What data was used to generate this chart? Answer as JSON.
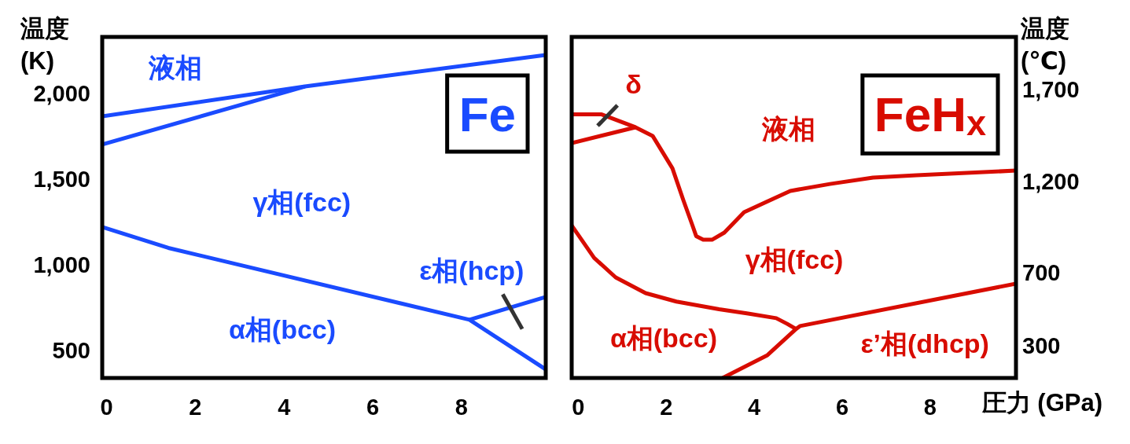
{
  "chart_data": [
    {
      "type": "line",
      "title": "Fe",
      "ylabel": "温度\n(K)",
      "xlim": [
        -0.1,
        9.9
      ],
      "xticks": [
        0,
        2,
        4,
        6,
        8
      ],
      "ylim": [
        340,
        2330
      ],
      "yticks": [
        {
          "value": 500,
          "label": "500"
        },
        {
          "value": 1000,
          "label": "1,000"
        },
        {
          "value": 1500,
          "label": "1,500"
        },
        {
          "value": 2000,
          "label": "2,000"
        }
      ],
      "annotations": [
        "液相",
        "γ相(fcc)",
        "ε相(hcp)",
        "α相(bcc)"
      ],
      "series": [
        {
          "color": "#1a4bff",
          "x": [
            -0.1,
            4.47,
            9.9
          ],
          "values": [
            1867,
            2041,
            2225
          ]
        },
        {
          "color": "#1a4bff",
          "x": [
            -0.1,
            4.47
          ],
          "values": [
            1702,
            2041
          ]
        },
        {
          "color": "#1a4bff",
          "x": [
            -0.1,
            1.39,
            8.18,
            9.9
          ],
          "values": [
            1221,
            1099,
            680,
            390
          ]
        },
        {
          "color": "#1a4bff",
          "x": [
            8.18,
            9.9
          ],
          "values": [
            680,
            813
          ]
        },
        {
          "color": "#333333",
          "x": [
            8.93,
            9.37
          ],
          "values": [
            828,
            626
          ]
        }
      ]
    },
    {
      "type": "line",
      "title": "FeH$_{x}$",
      "xlabel": "圧力 (GPa)",
      "y2label": "温度\n(℃)",
      "xlim": [
        -0.15,
        9.95
      ],
      "xticks": [
        0,
        2,
        4,
        6,
        8
      ],
      "y2lim": [
        125,
        1990
      ],
      "y2ticks": [
        {
          "value": 300,
          "label": "300"
        },
        {
          "value": 700,
          "label": "700"
        },
        {
          "value": 1200,
          "label": "1,200"
        },
        {
          "value": 1700,
          "label": "1,700"
        }
      ],
      "annotations": [
        "δ",
        "液相",
        "γ相(fcc)",
        "α相(bcc)",
        "ε’相(dhcp)"
      ],
      "series": [
        {
          "color": "#d80c00",
          "axis": "y2",
          "x": [
            -0.15,
            0.52,
            1.3,
            1.69,
            2.14,
            2.39,
            2.59,
            2.68,
            2.84,
            3.04,
            3.32,
            3.77,
            4.82,
            5.72,
            6.7,
            7.69,
            9.95
          ],
          "values": [
            1567,
            1567,
            1496,
            1449,
            1272,
            1096,
            963,
            901,
            881,
            881,
            920,
            1032,
            1148,
            1186,
            1221,
            1234,
            1259
          ]
        },
        {
          "color": "#d80c00",
          "axis": "y2",
          "x": [
            -0.15,
            1.3
          ],
          "values": [
            1410,
            1496
          ]
        },
        {
          "color": "#d80c00",
          "axis": "y2",
          "x": [
            -0.15,
            0.36,
            0.85,
            1.53,
            2.23,
            3.2,
            3.86,
            4.5,
            4.75,
            4.95
          ],
          "values": [
            959,
            782,
            675,
            589,
            543,
            501,
            477,
            452,
            421,
            393
          ]
        },
        {
          "color": "#d80c00",
          "axis": "y2",
          "x": [
            3.28,
            4.3,
            4.95,
            5.04,
            9.95
          ],
          "values": [
            125,
            250,
            393,
            409,
            641
          ]
        },
        {
          "color": "#333333",
          "axis": "y2",
          "x": [
            0.44,
            0.89
          ],
          "values": [
            1504,
            1616
          ]
        }
      ]
    }
  ]
}
